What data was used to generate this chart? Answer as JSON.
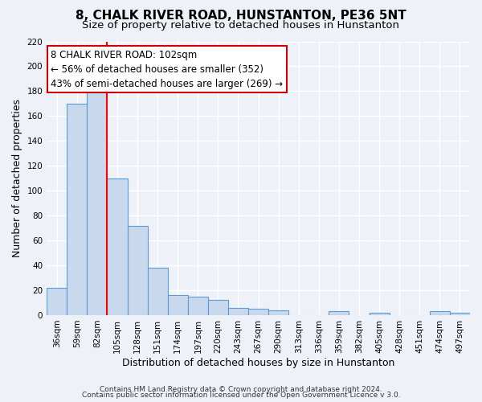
{
  "title": "8, CHALK RIVER ROAD, HUNSTANTON, PE36 5NT",
  "subtitle": "Size of property relative to detached houses in Hunstanton",
  "xlabel": "Distribution of detached houses by size in Hunstanton",
  "ylabel": "Number of detached properties",
  "bar_labels": [
    "36sqm",
    "59sqm",
    "82sqm",
    "105sqm",
    "128sqm",
    "151sqm",
    "174sqm",
    "197sqm",
    "220sqm",
    "243sqm",
    "267sqm",
    "290sqm",
    "313sqm",
    "336sqm",
    "359sqm",
    "382sqm",
    "405sqm",
    "428sqm",
    "451sqm",
    "474sqm",
    "497sqm"
  ],
  "bar_values": [
    22,
    170,
    180,
    110,
    72,
    38,
    16,
    15,
    12,
    6,
    5,
    4,
    0,
    0,
    3,
    0,
    2,
    0,
    0,
    3,
    2
  ],
  "bar_color": "#c9d9ed",
  "bar_edge_color": "#5b9bd5",
  "annotation_title": "8 CHALK RIVER ROAD: 102sqm",
  "annotation_line1": "← 56% of detached houses are smaller (352)",
  "annotation_line2": "43% of semi-detached houses are larger (269) →",
  "ylim": [
    0,
    220
  ],
  "yticks": [
    0,
    20,
    40,
    60,
    80,
    100,
    120,
    140,
    160,
    180,
    200,
    220
  ],
  "footer1": "Contains HM Land Registry data © Crown copyright and database right 2024.",
  "footer2": "Contains public sector information licensed under the Open Government Licence v 3.0.",
  "bg_color": "#eef2f8",
  "grid_color": "#ffffff",
  "title_fontsize": 11,
  "subtitle_fontsize": 9.5,
  "axis_label_fontsize": 9,
  "tick_fontsize": 7.5,
  "annotation_fontsize": 8.5,
  "footer_fontsize": 6.5
}
